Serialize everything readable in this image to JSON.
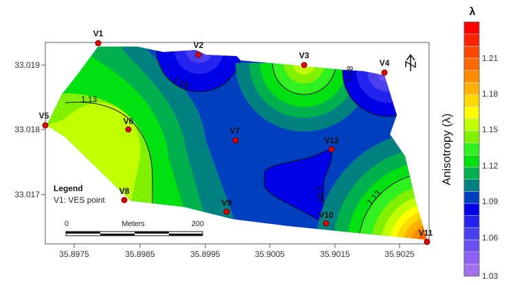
{
  "map": {
    "y_ticks": [
      "33.019",
      "33.018",
      "33.017"
    ],
    "x_ticks": [
      "35.8975",
      "35.8985",
      "35.8995",
      "35.9005",
      "35.9015",
      "35.9025"
    ],
    "points": [
      {
        "label": "V1"
      },
      {
        "label": "V2"
      },
      {
        "label": "V3"
      },
      {
        "label": "V4"
      },
      {
        "label": "V5"
      },
      {
        "label": "V6"
      },
      {
        "label": "V7"
      },
      {
        "label": "V8"
      },
      {
        "label": "V9"
      },
      {
        "label": "V10"
      },
      {
        "label": "V11"
      },
      {
        "label": "V12"
      }
    ],
    "contour_labels": [
      "1.13",
      "1.08",
      "1.08",
      "1.08",
      "1.13"
    ],
    "legend": {
      "title": "Legend",
      "item": "V1: VES point"
    },
    "scale_bar": {
      "start": "0",
      "unit": "Meters",
      "end": "200"
    },
    "north_arrow": "north-arrow-icon",
    "point_color": "#e00000"
  },
  "colorbar": {
    "title": "λ",
    "axis_label": "Anisotropy (λ)",
    "ticks": [
      "1.21",
      "1.18",
      "1.15",
      "1.12",
      "1.09",
      "1.06",
      "1.03"
    ],
    "colors": [
      "#a070f0",
      "#8a62f2",
      "#6a52f2",
      "#4a40f0",
      "#2424ee",
      "#0000e6",
      "#0040c0",
      "#008080",
      "#00b04c",
      "#00e010",
      "#30f020",
      "#80f000",
      "#c0ff00",
      "#ffff00",
      "#ffd800",
      "#ffb000",
      "#ff8c00",
      "#ff6a00",
      "#ff4800",
      "#ff2400",
      "#ff0000"
    ]
  }
}
